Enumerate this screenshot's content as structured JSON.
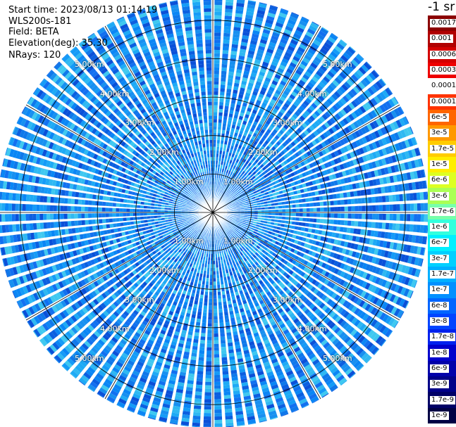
{
  "info": {
    "start_time": "Start time: 2023/08/13 01:14:19",
    "instrument": "WLS200s-181",
    "field": "Field: BETA",
    "elevation": "Elevation(deg): 35.30",
    "nrays": "NRays: 120"
  },
  "colorbar": {
    "unit_label": "-1 sr",
    "labels": [
      "0.0017",
      "0.001",
      "0.0006",
      "0.0003",
      "0.00017",
      "0.0001",
      "6e-5",
      "3e-5",
      "1.7e-5",
      "1e-5",
      "6e-6",
      "3e-6",
      "1.7e-6",
      "1e-6",
      "6e-7",
      "3e-7",
      "1.7e-7",
      "1e-7",
      "6e-8",
      "3e-8",
      "1.7e-8",
      "1e-8",
      "6e-9",
      "3e-9",
      "1.7e-9",
      "1e-9"
    ],
    "colors": [
      "#8b0000",
      "#b00000",
      "#d40000",
      "#ee0000",
      "#ffffff",
      "#ff3300",
      "#ff6600",
      "#ff9900",
      "#ffcc00",
      "#ffee00",
      "#ddff22",
      "#aaff55",
      "#77ffaa",
      "#33ffdd",
      "#00f0ff",
      "#00d0ff",
      "#00b0ff",
      "#0090ff",
      "#0066ff",
      "#0044ff",
      "#0022ee",
      "#0000cc",
      "#0000aa",
      "#000088",
      "#000066",
      "#000044"
    ]
  },
  "chart_data": {
    "type": "heatmap",
    "title": "",
    "field": "BETA",
    "nrays": 120,
    "range_rings_km": [
      1.0,
      2.0,
      3.0,
      4.0,
      5.0
    ],
    "ring_labels": [
      "1.00km",
      "2.00km",
      "3.00km",
      "4.00km",
      "5.00km"
    ],
    "max_range_km": 5.6,
    "colorscale": "log",
    "value_range": [
      1e-09,
      0.0017
    ],
    "dominant_value_range": [
      1e-08,
      1e-07
    ],
    "spoke_angles_deg": [
      0,
      30,
      60,
      90,
      120,
      150,
      180,
      210,
      240,
      270,
      300,
      330
    ]
  }
}
